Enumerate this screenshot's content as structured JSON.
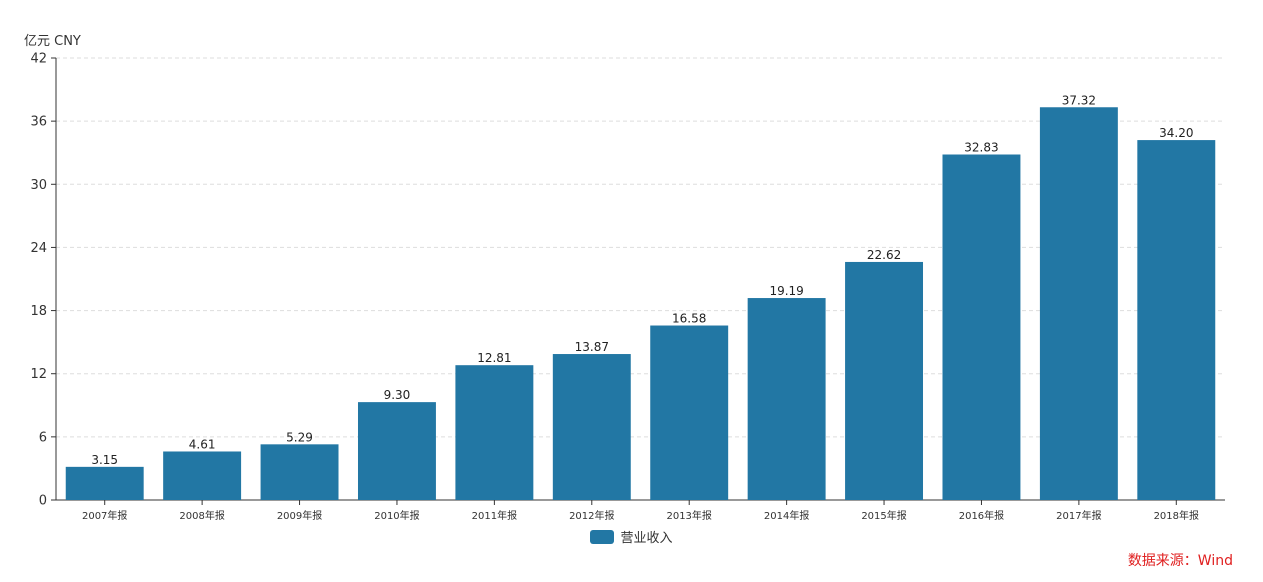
{
  "unit_label": "亿元  CNY",
  "source_text": "数据来源：Wind",
  "colors": {
    "bar": "#2277a4",
    "axis": "#333333",
    "grid": "#dddddd",
    "source": "#e02020"
  },
  "chart_data": {
    "type": "bar",
    "categories": [
      "2007年报",
      "2008年报",
      "2009年报",
      "2010年报",
      "2011年报",
      "2012年报",
      "2013年报",
      "2014年报",
      "2015年报",
      "2016年报",
      "2017年报",
      "2018年报"
    ],
    "series": [
      {
        "name": "营业收入",
        "values": [
          3.15,
          4.61,
          5.29,
          9.3,
          12.81,
          13.87,
          16.58,
          19.19,
          22.62,
          32.83,
          37.32,
          34.2
        ],
        "labels": [
          "3.15",
          "4.61",
          "5.29",
          "9.30",
          "12.81",
          "13.87",
          "16.58",
          "19.19",
          "22.62",
          "32.83",
          "37.32",
          "34.20"
        ]
      }
    ],
    "ylim": [
      0,
      42
    ],
    "yticks": [
      0,
      6,
      12,
      18,
      24,
      30,
      36,
      42
    ],
    "ylabel": "亿元  CNY",
    "xlabel": "",
    "grid": true,
    "legend": "bottom-center"
  }
}
